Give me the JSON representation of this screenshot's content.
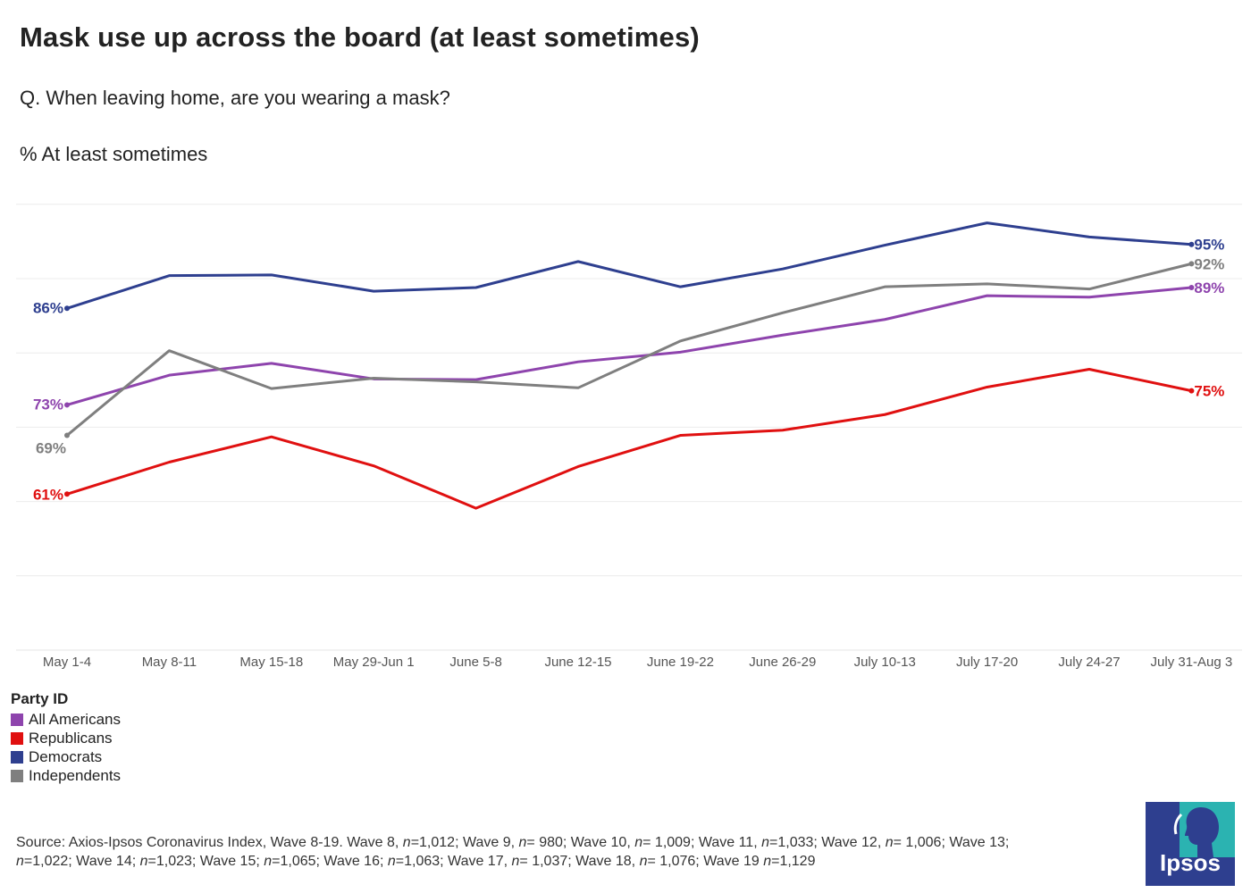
{
  "title": "Mask use up across the board (at least sometimes)",
  "question": "Q. When leaving home, are you wearing a mask?",
  "subtitle": "% At least sometimes",
  "legend_title": "Party ID",
  "source": {
    "parts": [
      {
        "t": "Source: Axios-Ipsos Coronavirus Index, Wave 8-19. Wave 8, "
      },
      {
        "t": "n",
        "i": true
      },
      {
        "t": "=1,012; Wave 9, "
      },
      {
        "t": "n",
        "i": true
      },
      {
        "t": "= 980; Wave 10, "
      },
      {
        "t": "n",
        "i": true
      },
      {
        "t": "= 1,009; Wave 11, "
      },
      {
        "t": "n",
        "i": true
      },
      {
        "t": "=1,033; Wave 12, "
      },
      {
        "t": "n",
        "i": true
      },
      {
        "t": "= 1,006; Wave 13; "
      },
      {
        "t": "n",
        "i": true
      },
      {
        "t": "=1,022; Wave 14; "
      },
      {
        "t": "n",
        "i": true
      },
      {
        "t": "=1,023; Wave 15; "
      },
      {
        "t": "n",
        "i": true
      },
      {
        "t": "=1,065; Wave 16; "
      },
      {
        "t": "n",
        "i": true
      },
      {
        "t": "=1,063; Wave 17, "
      },
      {
        "t": "n",
        "i": true
      },
      {
        "t": "= 1,037; Wave 18, "
      },
      {
        "t": "n",
        "i": true
      },
      {
        "t": "= 1,076; Wave 19 "
      },
      {
        "t": "n",
        "i": true
      },
      {
        "t": "=1,129"
      }
    ]
  },
  "logo_text": "Ipsos",
  "chart_data": {
    "type": "line",
    "categories": [
      "May 1-4",
      "May 8-11",
      "May 15-18",
      "May 29-Jun 1",
      "June 5-8",
      "June 12-15",
      "June 19-22",
      "June 26-29",
      "July 10-13",
      "July 17-20",
      "July 24-27",
      "July 31-Aug 3"
    ],
    "ylim": [
      50,
      100
    ],
    "grid": true,
    "legend_position": "bottom-left",
    "series": [
      {
        "name": "All Americans",
        "color": "#8e44ad",
        "values": [
          73,
          77,
          78.6,
          76.5,
          76.4,
          78.8,
          80.1,
          82.4,
          84.5,
          87.7,
          87.5,
          88.8
        ],
        "start_label": "73%",
        "end_label": "89%"
      },
      {
        "name": "Republicans",
        "color": "#e01010",
        "values": [
          61,
          65.3,
          68.7,
          64.8,
          59.1,
          64.7,
          68.9,
          69.6,
          71.7,
          75.4,
          77.8,
          74.9
        ],
        "start_label": "61%",
        "end_label": "75%"
      },
      {
        "name": "Democrats",
        "color": "#2e3f8f",
        "values": [
          86,
          90.4,
          90.5,
          88.3,
          88.8,
          92.3,
          88.9,
          91.3,
          94.5,
          97.5,
          95.6,
          94.6
        ],
        "start_label": "86%",
        "end_label": "95%"
      },
      {
        "name": "Independents",
        "color": "#7f7f7f",
        "values": [
          68.9,
          80.3,
          75.2,
          76.6,
          76.1,
          75.3,
          81.6,
          85.4,
          88.9,
          89.3,
          88.6,
          92
        ],
        "start_label": "69%",
        "end_label": "92%"
      }
    ]
  }
}
